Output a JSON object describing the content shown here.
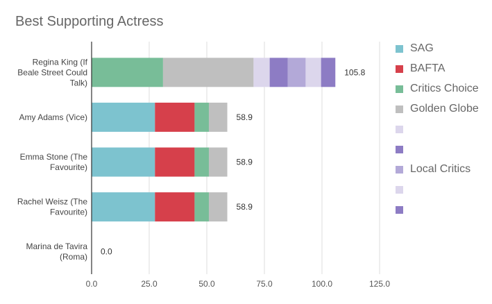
{
  "chart_data": {
    "type": "bar",
    "orientation": "horizontal",
    "stacked": true,
    "title": "Best Supporting Actress",
    "categories": [
      [
        "Regina King (If",
        "Beale Street Could",
        "Talk)"
      ],
      [
        "Amy Adams (Vice)"
      ],
      [
        "Emma Stone (The",
        "Favourite)"
      ],
      [
        "Rachel Weisz (The",
        "Favourite)"
      ],
      [
        "Marina de Tavira",
        "(Roma)"
      ]
    ],
    "series": [
      {
        "name": "SAG",
        "color": "#7dc3cf",
        "values": [
          0,
          27.5,
          27.5,
          27.5,
          0
        ]
      },
      {
        "name": "BAFTA",
        "color": "#d6404b",
        "values": [
          0,
          17.2,
          17.2,
          17.2,
          0
        ]
      },
      {
        "name": "Critics Choice",
        "color": "#78bd98",
        "values": [
          31.0,
          6.2,
          6.2,
          6.2,
          0
        ]
      },
      {
        "name": "Golden Globe",
        "color": "#bfbfbf",
        "values": [
          39.3,
          8.0,
          8.0,
          8.0,
          0
        ]
      },
      {
        "name": "",
        "color": "#dcd6ec",
        "values": [
          7.0,
          0,
          0,
          0,
          0
        ]
      },
      {
        "name": "",
        "color": "#8d7cc4",
        "values": [
          7.8,
          0,
          0,
          0,
          0
        ]
      },
      {
        "name": "Local Critics",
        "color": "#b3a9d8",
        "values": [
          7.8,
          0,
          0,
          0,
          0
        ]
      },
      {
        "name": "",
        "color": "#dcd6ec",
        "values": [
          6.7,
          0,
          0,
          0,
          0
        ]
      },
      {
        "name": "",
        "color": "#8d7cc4",
        "values": [
          6.2,
          0,
          0,
          0,
          0
        ]
      }
    ],
    "totals": [
      "105.8",
      "58.9",
      "58.9",
      "58.9",
      "0.0"
    ],
    "xticks": [
      "0.0",
      "25.0",
      "50.0",
      "75.0",
      "100.0",
      "125.0"
    ],
    "xlim": [
      0,
      125
    ],
    "grid": "vertical",
    "legend": "right"
  }
}
